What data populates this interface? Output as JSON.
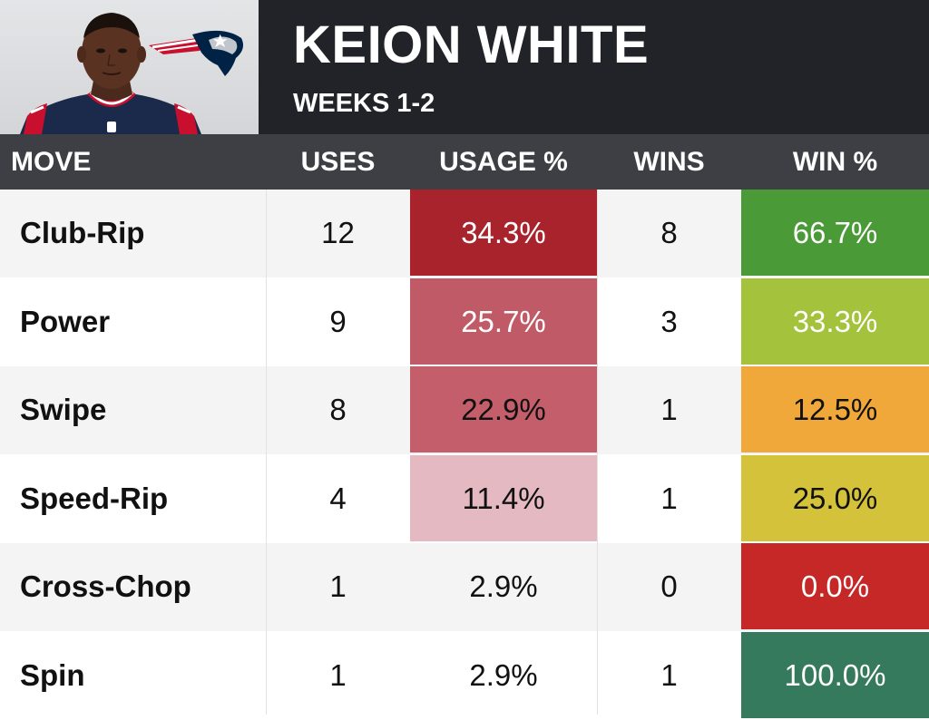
{
  "header": {
    "player_name": "KEION WHITE",
    "subtitle": "WEEKS 1-2"
  },
  "colors": {
    "header_bg": "#222328",
    "column_header_bg": "#3e3f45",
    "usage_high": "#a8232b",
    "usage_mid": "#c05a66",
    "usage_low": "#e4b9c2",
    "win_0": "#c62828",
    "win_100": "#357a5c"
  },
  "chart_data": {
    "type": "table",
    "title": "KEION WHITE",
    "subtitle": "WEEKS 1-2",
    "columns": [
      "MOVE",
      "USES",
      "USAGE %",
      "WINS",
      "WIN %"
    ],
    "rows": [
      {
        "move": "Club-Rip",
        "uses": "12",
        "usage": "34.3%",
        "wins": "8",
        "win_pct": "66.7%",
        "usage_bg": "#a8232b",
        "usage_fg": "#ffffff",
        "win_bg": "#4a9a38",
        "win_fg": "#ffffff"
      },
      {
        "move": "Power",
        "uses": "9",
        "usage": "25.7%",
        "wins": "3",
        "win_pct": "33.3%",
        "usage_bg": "#c05a66",
        "usage_fg": "#ffffff",
        "win_bg": "#a4c23c",
        "win_fg": "#ffffff"
      },
      {
        "move": "Swipe",
        "uses": "8",
        "usage": "22.9%",
        "wins": "1",
        "win_pct": "12.5%",
        "usage_bg": "#c45e6a",
        "usage_fg": "#111111",
        "win_bg": "#f0a83a",
        "win_fg": "#111111"
      },
      {
        "move": "Speed-Rip",
        "uses": "4",
        "usage": "11.4%",
        "wins": "1",
        "win_pct": "25.0%",
        "usage_bg": "#e4b9c2",
        "usage_fg": "#111111",
        "win_bg": "#d4c23a",
        "win_fg": "#111111"
      },
      {
        "move": "Cross-Chop",
        "uses": "1",
        "usage": "2.9%",
        "wins": "0",
        "win_pct": "0.0%",
        "usage_bg": "",
        "usage_fg": "#111111",
        "win_bg": "#c62828",
        "win_fg": "#ffffff"
      },
      {
        "move": "Spin",
        "uses": "1",
        "usage": "2.9%",
        "wins": "1",
        "win_pct": "100.0%",
        "usage_bg": "",
        "usage_fg": "#111111",
        "win_bg": "#357a5c",
        "win_fg": "#ffffff"
      }
    ]
  }
}
